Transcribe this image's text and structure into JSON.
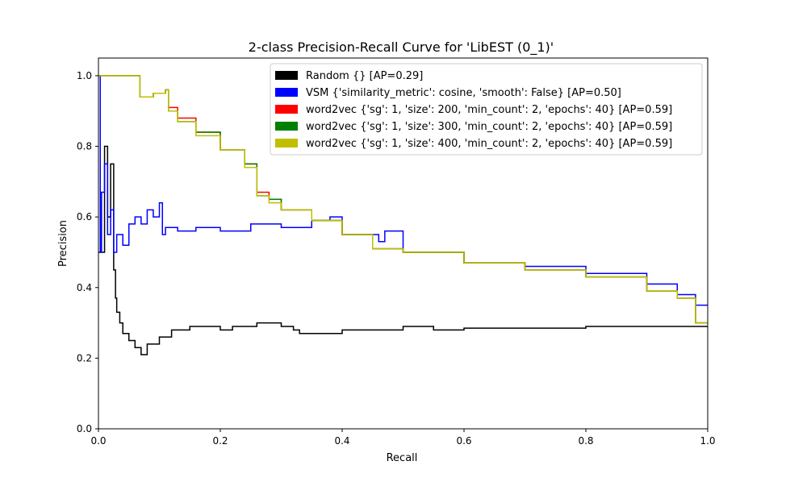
{
  "chart_data": {
    "type": "line",
    "title": "2-class Precision-Recall Curve for 'LibEST (0_1)'",
    "xlabel": "Recall",
    "ylabel": "Precision",
    "xlim": [
      0,
      1
    ],
    "ylim": [
      0,
      1.05
    ],
    "x_ticks": [
      "0.0",
      "0.2",
      "0.4",
      "0.6",
      "0.8",
      "1.0"
    ],
    "y_ticks": [
      "0.0",
      "0.2",
      "0.4",
      "0.6",
      "0.8",
      "1.0"
    ],
    "legend_position": "top-right",
    "grid": false,
    "series": [
      {
        "name": "Random {} [AP=0.29]",
        "color": "#000000",
        "x": [
          0.0,
          0.01,
          0.01,
          0.015,
          0.015,
          0.02,
          0.02,
          0.025,
          0.025,
          0.028,
          0.028,
          0.03,
          0.03,
          0.035,
          0.035,
          0.04,
          0.04,
          0.05,
          0.05,
          0.06,
          0.06,
          0.07,
          0.07,
          0.08,
          0.08,
          0.1,
          0.1,
          0.12,
          0.12,
          0.15,
          0.15,
          0.2,
          0.2,
          0.22,
          0.22,
          0.26,
          0.26,
          0.3,
          0.3,
          0.32,
          0.32,
          0.33,
          0.33,
          0.4,
          0.4,
          0.5,
          0.5,
          0.55,
          0.55,
          0.6,
          0.6,
          0.8,
          0.8,
          1.0
        ],
        "y": [
          0.5,
          0.5,
          0.8,
          0.8,
          0.6,
          0.6,
          0.75,
          0.75,
          0.45,
          0.45,
          0.37,
          0.37,
          0.33,
          0.33,
          0.3,
          0.3,
          0.27,
          0.27,
          0.25,
          0.25,
          0.23,
          0.23,
          0.21,
          0.21,
          0.24,
          0.24,
          0.26,
          0.26,
          0.28,
          0.28,
          0.29,
          0.29,
          0.28,
          0.28,
          0.29,
          0.29,
          0.3,
          0.3,
          0.29,
          0.29,
          0.28,
          0.28,
          0.27,
          0.27,
          0.28,
          0.28,
          0.29,
          0.29,
          0.28,
          0.28,
          0.285,
          0.285,
          0.29,
          0.29
        ]
      },
      {
        "name": "VSM {'similarity_metric': cosine, 'smooth': False} [AP=0.50]",
        "color": "#0000ff",
        "x": [
          0.0,
          0.003,
          0.003,
          0.005,
          0.005,
          0.01,
          0.01,
          0.015,
          0.015,
          0.02,
          0.02,
          0.025,
          0.025,
          0.03,
          0.03,
          0.04,
          0.04,
          0.05,
          0.05,
          0.06,
          0.06,
          0.07,
          0.07,
          0.08,
          0.08,
          0.09,
          0.09,
          0.1,
          0.1,
          0.105,
          0.105,
          0.11,
          0.11,
          0.13,
          0.13,
          0.16,
          0.16,
          0.2,
          0.2,
          0.25,
          0.25,
          0.3,
          0.3,
          0.35,
          0.35,
          0.38,
          0.38,
          0.4,
          0.4,
          0.46,
          0.46,
          0.47,
          0.47,
          0.5,
          0.5,
          0.6,
          0.6,
          0.7,
          0.7,
          0.8,
          0.8,
          0.9,
          0.9,
          0.95,
          0.95,
          0.98,
          0.98,
          1.0
        ],
        "y": [
          1.0,
          1.0,
          0.5,
          0.5,
          0.67,
          0.67,
          0.75,
          0.75,
          0.55,
          0.55,
          0.62,
          0.62,
          0.5,
          0.5,
          0.55,
          0.55,
          0.52,
          0.52,
          0.58,
          0.58,
          0.6,
          0.6,
          0.58,
          0.58,
          0.62,
          0.62,
          0.6,
          0.6,
          0.64,
          0.64,
          0.55,
          0.55,
          0.57,
          0.57,
          0.56,
          0.56,
          0.57,
          0.57,
          0.56,
          0.56,
          0.58,
          0.58,
          0.57,
          0.57,
          0.59,
          0.59,
          0.6,
          0.6,
          0.55,
          0.55,
          0.53,
          0.53,
          0.56,
          0.56,
          0.5,
          0.5,
          0.47,
          0.47,
          0.46,
          0.46,
          0.44,
          0.44,
          0.41,
          0.41,
          0.38,
          0.38,
          0.35,
          0.35
        ]
      },
      {
        "name": "word2vec {'sg': 1, 'size': 200, 'min_count': 2, 'epochs': 40} [AP=0.59]",
        "color": "#ff0000",
        "x": [
          0.0,
          0.068,
          0.068,
          0.09,
          0.09,
          0.11,
          0.11,
          0.115,
          0.115,
          0.13,
          0.13,
          0.16,
          0.16,
          0.2,
          0.2,
          0.24,
          0.24,
          0.26,
          0.26,
          0.28,
          0.28,
          0.3,
          0.3,
          0.35,
          0.35,
          0.4,
          0.4,
          0.45,
          0.45,
          0.5,
          0.5,
          0.6,
          0.6,
          0.7,
          0.7,
          0.8,
          0.8,
          0.9,
          0.9,
          0.95,
          0.95,
          0.98,
          0.98,
          1.0
        ],
        "y": [
          1.0,
          1.0,
          0.94,
          0.94,
          0.95,
          0.95,
          0.96,
          0.96,
          0.91,
          0.91,
          0.88,
          0.88,
          0.84,
          0.84,
          0.79,
          0.79,
          0.75,
          0.75,
          0.67,
          0.67,
          0.65,
          0.65,
          0.62,
          0.62,
          0.59,
          0.59,
          0.55,
          0.55,
          0.51,
          0.51,
          0.5,
          0.5,
          0.47,
          0.47,
          0.45,
          0.45,
          0.43,
          0.43,
          0.39,
          0.39,
          0.37,
          0.37,
          0.3,
          0.3
        ]
      },
      {
        "name": "word2vec {'sg': 1, 'size': 300, 'min_count': 2, 'epochs': 40} [AP=0.59]",
        "color": "#008000",
        "x": [
          0.0,
          0.068,
          0.068,
          0.09,
          0.09,
          0.11,
          0.11,
          0.115,
          0.115,
          0.13,
          0.13,
          0.16,
          0.16,
          0.2,
          0.2,
          0.24,
          0.24,
          0.26,
          0.26,
          0.28,
          0.28,
          0.3,
          0.3,
          0.35,
          0.35,
          0.4,
          0.4,
          0.45,
          0.45,
          0.5,
          0.5,
          0.6,
          0.6,
          0.7,
          0.7,
          0.8,
          0.8,
          0.9,
          0.9,
          0.95,
          0.95,
          0.98,
          0.98,
          1.0
        ],
        "y": [
          1.0,
          1.0,
          0.94,
          0.94,
          0.95,
          0.95,
          0.96,
          0.96,
          0.9,
          0.9,
          0.87,
          0.87,
          0.84,
          0.84,
          0.79,
          0.79,
          0.75,
          0.75,
          0.66,
          0.66,
          0.65,
          0.65,
          0.62,
          0.62,
          0.59,
          0.59,
          0.55,
          0.55,
          0.51,
          0.51,
          0.5,
          0.5,
          0.47,
          0.47,
          0.45,
          0.45,
          0.43,
          0.43,
          0.39,
          0.39,
          0.37,
          0.37,
          0.3,
          0.3
        ]
      },
      {
        "name": "word2vec {'sg': 1, 'size': 400, 'min_count': 2, 'epochs': 40} [AP=0.59]",
        "color": "#bfbf00",
        "x": [
          0.0,
          0.068,
          0.068,
          0.09,
          0.09,
          0.11,
          0.11,
          0.115,
          0.115,
          0.13,
          0.13,
          0.16,
          0.16,
          0.2,
          0.2,
          0.24,
          0.24,
          0.26,
          0.26,
          0.28,
          0.28,
          0.3,
          0.3,
          0.35,
          0.35,
          0.4,
          0.4,
          0.45,
          0.45,
          0.5,
          0.5,
          0.6,
          0.6,
          0.7,
          0.7,
          0.8,
          0.8,
          0.9,
          0.9,
          0.95,
          0.95,
          0.98,
          0.98,
          1.0
        ],
        "y": [
          1.0,
          1.0,
          0.94,
          0.94,
          0.95,
          0.95,
          0.96,
          0.96,
          0.9,
          0.9,
          0.87,
          0.87,
          0.83,
          0.83,
          0.79,
          0.79,
          0.74,
          0.74,
          0.66,
          0.66,
          0.64,
          0.64,
          0.62,
          0.62,
          0.59,
          0.59,
          0.55,
          0.55,
          0.51,
          0.51,
          0.5,
          0.5,
          0.47,
          0.47,
          0.45,
          0.45,
          0.43,
          0.43,
          0.39,
          0.39,
          0.37,
          0.37,
          0.3,
          0.3
        ]
      }
    ]
  }
}
